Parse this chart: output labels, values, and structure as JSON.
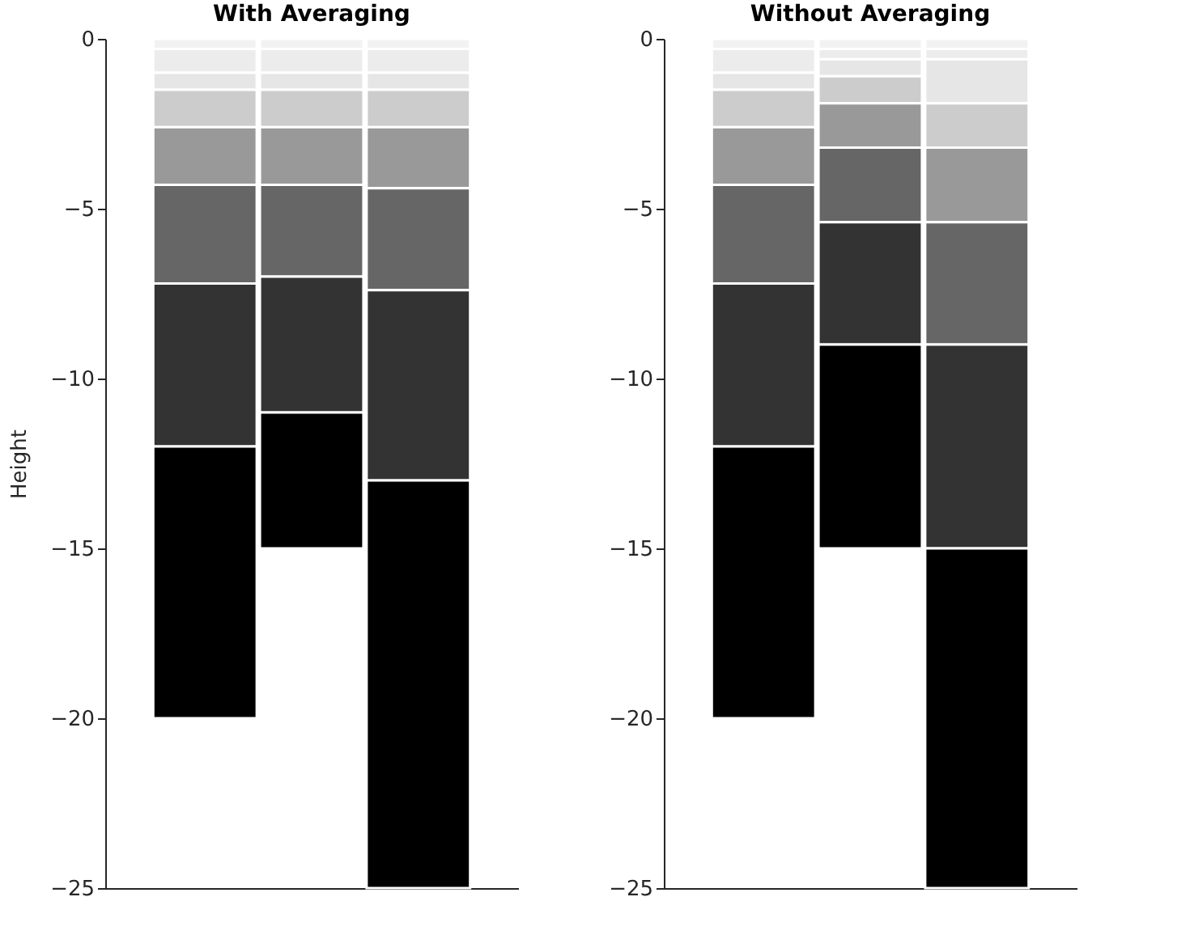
{
  "chart_data": [
    {
      "type": "bar",
      "title": "With Averaging",
      "ylabel": "Height",
      "categories": [
        null,
        null,
        null
      ],
      "stacked": true,
      "ylim": [
        -25,
        0
      ],
      "yticks": [
        -25,
        -20,
        -15,
        -10,
        -5,
        0
      ],
      "grid": false,
      "series": [
        {
          "color": "#f2f2f2",
          "values": [
            -0.3,
            -0.3,
            -0.3
          ]
        },
        {
          "color": "#ececec",
          "values": [
            -0.7,
            -0.7,
            -0.7
          ]
        },
        {
          "color": "#e6e6e6",
          "values": [
            -0.5,
            -0.5,
            -0.5
          ]
        },
        {
          "color": "#cccccc",
          "values": [
            -1.1,
            -1.1,
            -1.1
          ]
        },
        {
          "color": "#999999",
          "values": [
            -1.7,
            -1.7,
            -1.8
          ]
        },
        {
          "color": "#666666",
          "values": [
            -2.9,
            -2.7,
            -3
          ]
        },
        {
          "color": "#333333",
          "values": [
            -4.8,
            -4,
            -5.6
          ]
        },
        {
          "color": "#000000",
          "values": [
            -8,
            -4,
            -12
          ]
        }
      ]
    },
    {
      "type": "bar",
      "title": "Without Averaging",
      "categories": [
        null,
        null,
        null
      ],
      "stacked": true,
      "ylim": [
        -25,
        0
      ],
      "yticks": [
        -25,
        -20,
        -15,
        -10,
        -5,
        0
      ],
      "grid": false,
      "series": [
        {
          "color": "#f2f2f2",
          "values": [
            -0.3,
            -0.3,
            -0.3
          ]
        },
        {
          "color": "#ececec",
          "values": [
            -0.7,
            -0.3,
            -0.3
          ]
        },
        {
          "color": "#e6e6e6",
          "values": [
            -0.5,
            -0.5,
            -1.3
          ]
        },
        {
          "color": "#cccccc",
          "values": [
            -1.1,
            -0.8,
            -1.3
          ]
        },
        {
          "color": "#999999",
          "values": [
            -1.7,
            -1.3,
            -2.2
          ]
        },
        {
          "color": "#666666",
          "values": [
            -2.9,
            -2.2,
            -3.6
          ]
        },
        {
          "color": "#333333",
          "values": [
            -4.8,
            -3.6,
            -6
          ]
        },
        {
          "color": "#000000",
          "values": [
            -8,
            -6,
            -10
          ]
        }
      ]
    }
  ]
}
